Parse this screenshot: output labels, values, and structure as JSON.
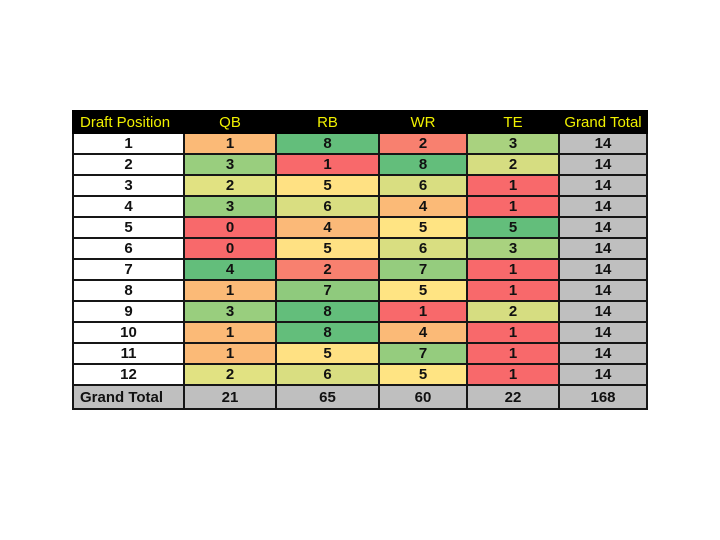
{
  "table": {
    "columns": [
      "Draft Position",
      "QB",
      "RB",
      "WR",
      "TE",
      "Grand Total"
    ],
    "header": {
      "bg": "#000000",
      "text_color": "#F0F000"
    },
    "row_label_bg": "#FFFFFF",
    "total_col_bg": "#BFBFBF",
    "border_color": "#161616",
    "rows": [
      {
        "label": "1",
        "cells": [
          {
            "v": "1",
            "c": "#FBBA77"
          },
          {
            "v": "8",
            "c": "#63BE7B"
          },
          {
            "v": "2",
            "c": "#F8806F"
          },
          {
            "v": "3",
            "c": "#A9D27F"
          }
        ],
        "total": "14"
      },
      {
        "label": "2",
        "cells": [
          {
            "v": "3",
            "c": "#99CE7E"
          },
          {
            "v": "1",
            "c": "#F8696B"
          },
          {
            "v": "8",
            "c": "#63BE7B"
          },
          {
            "v": "2",
            "c": "#D6DD81"
          }
        ],
        "total": "14"
      },
      {
        "label": "3",
        "cells": [
          {
            "v": "2",
            "c": "#E1E282"
          },
          {
            "v": "5",
            "c": "#FFE183"
          },
          {
            "v": "6",
            "c": "#D9DE81"
          },
          {
            "v": "1",
            "c": "#F8696B"
          }
        ],
        "total": "14"
      },
      {
        "label": "4",
        "cells": [
          {
            "v": "3",
            "c": "#99CE7E"
          },
          {
            "v": "6",
            "c": "#D9DE81"
          },
          {
            "v": "4",
            "c": "#FBBA77"
          },
          {
            "v": "1",
            "c": "#F8696B"
          }
        ],
        "total": "14"
      },
      {
        "label": "5",
        "cells": [
          {
            "v": "0",
            "c": "#F8696B"
          },
          {
            "v": "4",
            "c": "#FBB978"
          },
          {
            "v": "5",
            "c": "#FFE483"
          },
          {
            "v": "5",
            "c": "#63BE7B"
          }
        ],
        "total": "14"
      },
      {
        "label": "6",
        "cells": [
          {
            "v": "0",
            "c": "#F8696B"
          },
          {
            "v": "5",
            "c": "#FFE183"
          },
          {
            "v": "6",
            "c": "#D9DE81"
          },
          {
            "v": "3",
            "c": "#A9D27F"
          }
        ],
        "total": "14"
      },
      {
        "label": "7",
        "cells": [
          {
            "v": "4",
            "c": "#63BE7B"
          },
          {
            "v": "2",
            "c": "#F8806F"
          },
          {
            "v": "7",
            "c": "#95CC7E"
          },
          {
            "v": "1",
            "c": "#F8696B"
          }
        ],
        "total": "14"
      },
      {
        "label": "8",
        "cells": [
          {
            "v": "1",
            "c": "#FBBA77"
          },
          {
            "v": "7",
            "c": "#8FCA7D"
          },
          {
            "v": "5",
            "c": "#FFE483"
          },
          {
            "v": "1",
            "c": "#F8696B"
          }
        ],
        "total": "14"
      },
      {
        "label": "9",
        "cells": [
          {
            "v": "3",
            "c": "#99CE7E"
          },
          {
            "v": "8",
            "c": "#63BE7B"
          },
          {
            "v": "1",
            "c": "#F8696B"
          },
          {
            "v": "2",
            "c": "#D6DD81"
          }
        ],
        "total": "14"
      },
      {
        "label": "10",
        "cells": [
          {
            "v": "1",
            "c": "#FBBA77"
          },
          {
            "v": "8",
            "c": "#63BE7B"
          },
          {
            "v": "4",
            "c": "#FBBA77"
          },
          {
            "v": "1",
            "c": "#F8696B"
          }
        ],
        "total": "14"
      },
      {
        "label": "11",
        "cells": [
          {
            "v": "1",
            "c": "#FBBA77"
          },
          {
            "v": "5",
            "c": "#FFE183"
          },
          {
            "v": "7",
            "c": "#95CC7E"
          },
          {
            "v": "1",
            "c": "#F8696B"
          }
        ],
        "total": "14"
      },
      {
        "label": "12",
        "cells": [
          {
            "v": "2",
            "c": "#E1E282"
          },
          {
            "v": "6",
            "c": "#D9DE81"
          },
          {
            "v": "5",
            "c": "#FFE483"
          },
          {
            "v": "1",
            "c": "#F8696B"
          }
        ],
        "total": "14"
      }
    ],
    "grand_total_row": {
      "label": "Grand Total",
      "values": [
        "21",
        "65",
        "60",
        "22",
        "168"
      ]
    }
  },
  "chart_data": {
    "type": "table",
    "title": "",
    "columns": [
      "Draft Position",
      "QB",
      "RB",
      "WR",
      "TE",
      "Grand Total"
    ],
    "rows": [
      [
        1,
        1,
        8,
        2,
        3,
        14
      ],
      [
        2,
        3,
        1,
        8,
        2,
        14
      ],
      [
        3,
        2,
        5,
        6,
        1,
        14
      ],
      [
        4,
        3,
        6,
        4,
        1,
        14
      ],
      [
        5,
        0,
        4,
        5,
        5,
        14
      ],
      [
        6,
        0,
        5,
        6,
        3,
        14
      ],
      [
        7,
        4,
        2,
        7,
        1,
        14
      ],
      [
        8,
        1,
        7,
        5,
        1,
        14
      ],
      [
        9,
        3,
        8,
        1,
        2,
        14
      ],
      [
        10,
        1,
        8,
        4,
        1,
        14
      ],
      [
        11,
        1,
        5,
        7,
        1,
        14
      ],
      [
        12,
        2,
        6,
        5,
        1,
        14
      ]
    ],
    "grand_total": [
      "Grand Total",
      21,
      65,
      60,
      22,
      168
    ],
    "formatting": {
      "style": "3-color heatmap per position column (low=red, mid=yellow, high=green)",
      "red": "#F8696B",
      "yellow": "#FFE483",
      "green": "#63BE7B",
      "header_bg": "#000000",
      "header_text": "#F0F000",
      "total_bg": "#BFBFBF"
    }
  }
}
